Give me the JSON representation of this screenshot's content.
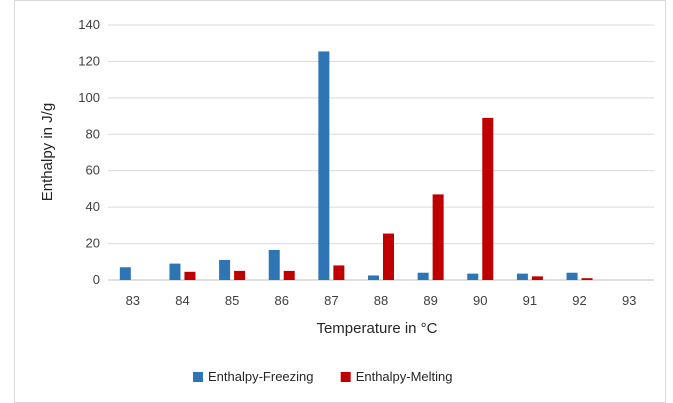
{
  "chart_data": {
    "type": "bar",
    "title": "",
    "xlabel": "Temperature in °C",
    "ylabel": "Enthalpy in J/g",
    "categories": [
      "83",
      "84",
      "85",
      "86",
      "87",
      "88",
      "89",
      "90",
      "91",
      "92",
      "93"
    ],
    "ylim": [
      0,
      140
    ],
    "yticks": [
      "0",
      "20",
      "40",
      "60",
      "80",
      "100",
      "120",
      "140"
    ],
    "grid": true,
    "legend_position": "bottom",
    "series": [
      {
        "name": "Enthalpy-Freezing",
        "color": "#2e75b6",
        "values": [
          7,
          9,
          11,
          16.5,
          125.5,
          2.5,
          4,
          3.5,
          3.5,
          4,
          0
        ]
      },
      {
        "name": "Enthalpy-Melting",
        "color": "#c00000",
        "values": [
          0,
          4.5,
          5,
          5,
          8,
          25.5,
          47,
          89,
          2,
          1,
          0
        ]
      }
    ]
  }
}
